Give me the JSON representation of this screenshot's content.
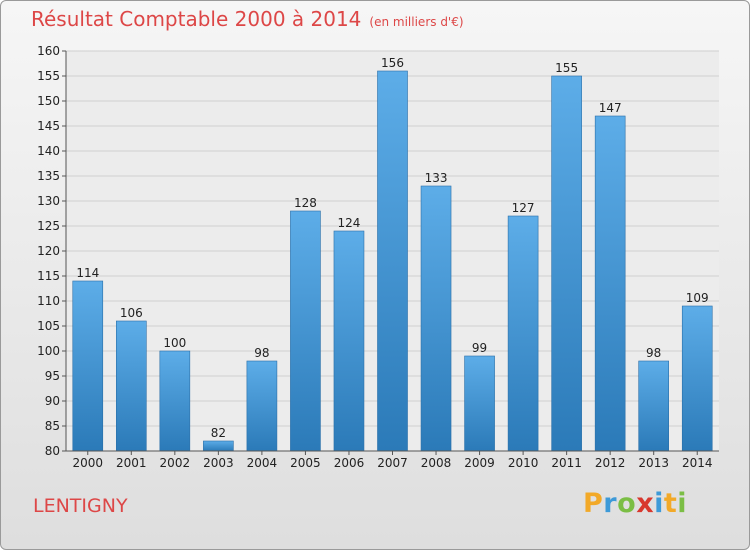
{
  "header": {
    "title": "Résultat Comptable 2000 à 2014",
    "unit": "(en milliers d'€)"
  },
  "footer": {
    "commune": "LENTIGNY"
  },
  "logo": {
    "letters": [
      "P",
      "r",
      "o",
      "x",
      "i",
      "t",
      "i"
    ],
    "colors": [
      "#f2a928",
      "#3d9ad8",
      "#7bbe45",
      "#d8382e",
      "#3d9ad8",
      "#f2a928",
      "#7bbe45"
    ]
  },
  "colors": {
    "bar_light": "#5dade8",
    "bar_dark": "#2b7ab8",
    "title": "#dd4747"
  },
  "chart_data": {
    "type": "bar",
    "title": "Résultat Comptable 2000 à 2014",
    "subtitle": "(en milliers d'€)",
    "categories": [
      "2000",
      "2001",
      "2002",
      "2003",
      "2004",
      "2005",
      "2006",
      "2007",
      "2008",
      "2009",
      "2010",
      "2011",
      "2012",
      "2013",
      "2014"
    ],
    "values": [
      114,
      106,
      100,
      82,
      98,
      128,
      124,
      156,
      133,
      99,
      127,
      155,
      147,
      98,
      109
    ],
    "ylim": [
      80,
      160
    ],
    "yticks": [
      80,
      85,
      90,
      95,
      100,
      105,
      110,
      115,
      120,
      125,
      130,
      135,
      140,
      145,
      150,
      155,
      160
    ],
    "grid": true,
    "data_labels": true
  }
}
